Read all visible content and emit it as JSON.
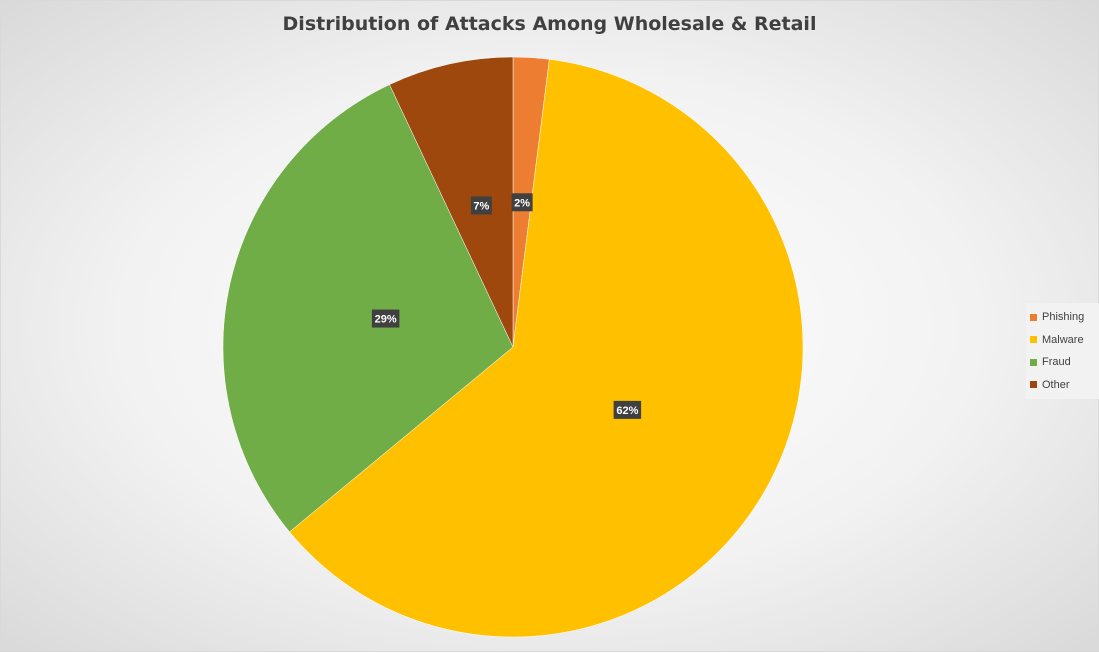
{
  "chart_data": {
    "type": "pie",
    "title": "Distribution of Attacks Among Wholesale & Retail",
    "categories": [
      "Phishing",
      "Malware",
      "Fraud",
      "Other"
    ],
    "values": [
      2,
      62,
      29,
      7
    ],
    "data_labels": [
      "2%",
      "62%",
      "29%",
      "7%"
    ],
    "colors": [
      "#ED7D31",
      "#FFC000",
      "#70AD47",
      "#9E480E"
    ],
    "legend_position": "right",
    "start_angle_deg": 0,
    "direction": "clockwise"
  }
}
